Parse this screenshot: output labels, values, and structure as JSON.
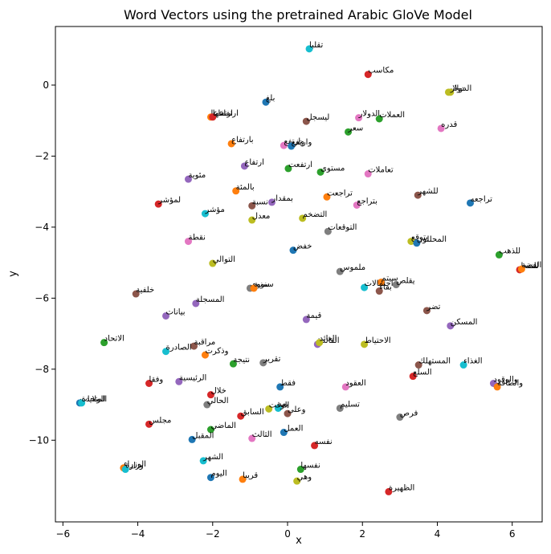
{
  "chart_data": {
    "type": "scatter",
    "title": "Word Vectors using the pretrained Arabic GloVe Model",
    "xlabel": "x",
    "ylabel": "y",
    "xlim": [
      -6.2,
      6.8
    ],
    "ylim": [
      -12.3,
      1.65
    ],
    "xticks": [
      -6,
      -4,
      -2,
      0,
      2,
      4,
      6
    ],
    "yticks": [
      0,
      -2,
      -4,
      -6,
      -8,
      -10
    ],
    "grid": false,
    "points": [
      {
        "x": 0.58,
        "y": 1.02,
        "label": "تقلبا",
        "color": "#17becf"
      },
      {
        "x": 2.15,
        "y": 0.3,
        "label": "مكاسب",
        "color": "#d62728"
      },
      {
        "x": 4.3,
        "y": -0.2,
        "label": "دولار",
        "color": "#bcbd22"
      },
      {
        "x": 4.35,
        "y": -0.2,
        "label": "الدولار",
        "color": "#bcbd22"
      },
      {
        "x": -0.58,
        "y": -0.48,
        "label": "بلغ",
        "color": "#1f77b4"
      },
      {
        "x": -2.05,
        "y": -0.9,
        "label": "ارتفاعا",
        "color": "#ff7f0e"
      },
      {
        "x": -2.0,
        "y": -0.9,
        "label": "ارتفاعها",
        "color": "#d62728"
      },
      {
        "x": 0.5,
        "y": -1.02,
        "label": "ليسجل",
        "color": "#8c564b"
      },
      {
        "x": 1.9,
        "y": -0.92,
        "label": "الدولار",
        "color": "#e377c2"
      },
      {
        "x": 2.45,
        "y": -0.95,
        "label": "العملات",
        "color": "#2ca02c"
      },
      {
        "x": 1.62,
        "y": -1.32,
        "label": "سعر",
        "color": "#2ca02c"
      },
      {
        "x": 4.1,
        "y": -1.22,
        "label": "قدره",
        "color": "#e377c2"
      },
      {
        "x": -1.5,
        "y": -1.65,
        "label": "بارتفاع",
        "color": "#ff7f0e"
      },
      {
        "x": -0.1,
        "y": -1.7,
        "label": "وارتفع",
        "color": "#e377c2"
      },
      {
        "x": 0.1,
        "y": -1.72,
        "label": "وارتفع",
        "color": "#1f77b4"
      },
      {
        "x": -1.15,
        "y": -2.28,
        "label": "ارتفاع",
        "color": "#9467bd"
      },
      {
        "x": 0.02,
        "y": -2.35,
        "label": "ارتفعت",
        "color": "#2ca02c"
      },
      {
        "x": 0.88,
        "y": -2.45,
        "label": "مستوى",
        "color": "#2ca02c"
      },
      {
        "x": 2.15,
        "y": -2.5,
        "label": "تعاملات",
        "color": "#e377c2"
      },
      {
        "x": -2.65,
        "y": -2.65,
        "label": "مئوية",
        "color": "#9467bd"
      },
      {
        "x": -1.38,
        "y": -2.98,
        "label": "بالمئة",
        "color": "#ff7f0e"
      },
      {
        "x": 3.48,
        "y": -3.1,
        "label": "للشهر",
        "color": "#8c564b"
      },
      {
        "x": 1.05,
        "y": -3.15,
        "label": "تراجعت",
        "color": "#ff7f0e"
      },
      {
        "x": -0.42,
        "y": -3.3,
        "label": "بمقدار",
        "color": "#9467bd"
      },
      {
        "x": 4.88,
        "y": -3.32,
        "label": "تراجعه",
        "color": "#1f77b4"
      },
      {
        "x": -3.45,
        "y": -3.35,
        "label": "لمؤشر",
        "color": "#d62728"
      },
      {
        "x": -0.95,
        "y": -3.4,
        "label": "نسبة",
        "color": "#8c564b"
      },
      {
        "x": 1.85,
        "y": -3.38,
        "label": "بتراجع",
        "color": "#e377c2"
      },
      {
        "x": -2.2,
        "y": -3.62,
        "label": "مؤشر",
        "color": "#17becf"
      },
      {
        "x": -0.95,
        "y": -3.8,
        "label": "معدل",
        "color": "#bcbd22"
      },
      {
        "x": 0.4,
        "y": -3.75,
        "label": "التضخم",
        "color": "#bcbd22"
      },
      {
        "x": 1.08,
        "y": -4.12,
        "label": "التوقعات",
        "color": "#7f7f7f"
      },
      {
        "x": 3.3,
        "y": -4.4,
        "label": "يتوقع",
        "color": "#bcbd22"
      },
      {
        "x": 3.45,
        "y": -4.45,
        "label": "المحللون",
        "color": "#1f77b4"
      },
      {
        "x": -2.65,
        "y": -4.4,
        "label": "نقطة",
        "color": "#e377c2"
      },
      {
        "x": 0.15,
        "y": -4.65,
        "label": "خفض",
        "color": "#1f77b4"
      },
      {
        "x": 5.65,
        "y": -4.78,
        "label": "للذهب",
        "color": "#2ca02c"
      },
      {
        "x": -2.0,
        "y": -5.02,
        "label": "التوالي",
        "color": "#bcbd22"
      },
      {
        "x": 6.2,
        "y": -5.2,
        "label": "للنفط",
        "color": "#d62728"
      },
      {
        "x": 6.25,
        "y": -5.18,
        "label": "الفضة",
        "color": "#ff7f0e"
      },
      {
        "x": 1.4,
        "y": -5.25,
        "label": "ملموس",
        "color": "#7f7f7f"
      },
      {
        "x": 2.5,
        "y": -5.55,
        "label": "سيتم",
        "color": "#ff7f0e"
      },
      {
        "x": 2.05,
        "y": -5.7,
        "label": "احتمالات",
        "color": "#17becf"
      },
      {
        "x": 2.9,
        "y": -5.62,
        "label": "يقلص",
        "color": "#7f7f7f"
      },
      {
        "x": 2.45,
        "y": -5.8,
        "label": "بقاء",
        "color": "#8c564b"
      },
      {
        "x": -1.0,
        "y": -5.72,
        "label": "سنوي",
        "color": "#7f7f7f"
      },
      {
        "x": -0.9,
        "y": -5.72,
        "label": "سنوية",
        "color": "#ff7f0e"
      },
      {
        "x": -4.05,
        "y": -5.88,
        "label": "خلفية",
        "color": "#8c564b"
      },
      {
        "x": 3.72,
        "y": -6.35,
        "label": "تضر",
        "color": "#8c564b"
      },
      {
        "x": -2.45,
        "y": -6.15,
        "label": "المسجلة",
        "color": "#9467bd"
      },
      {
        "x": -3.25,
        "y": -6.5,
        "label": "بيانات",
        "color": "#9467bd"
      },
      {
        "x": 0.5,
        "y": -6.6,
        "label": "قيمة",
        "color": "#9467bd"
      },
      {
        "x": 4.35,
        "y": -6.78,
        "label": "المسكن",
        "color": "#9467bd"
      },
      {
        "x": -4.9,
        "y": -7.25,
        "label": "الاتحاد",
        "color": "#2ca02c"
      },
      {
        "x": -2.5,
        "y": -7.35,
        "label": "مراقبة",
        "color": "#8c564b"
      },
      {
        "x": 0.8,
        "y": -7.3,
        "label": "الفائدة",
        "color": "#9467bd"
      },
      {
        "x": 0.85,
        "y": -7.25,
        "label": "العائد",
        "color": "#bcbd22"
      },
      {
        "x": 2.05,
        "y": -7.3,
        "label": "الاحتياط",
        "color": "#bcbd22"
      },
      {
        "x": -3.25,
        "y": -7.5,
        "label": "الصادرة",
        "color": "#17becf"
      },
      {
        "x": -2.2,
        "y": -7.6,
        "label": "وذكرت",
        "color": "#ff7f0e"
      },
      {
        "x": -1.45,
        "y": -7.85,
        "label": "نتيجة",
        "color": "#2ca02c"
      },
      {
        "x": -0.65,
        "y": -7.82,
        "label": "تقرير",
        "color": "#7f7f7f"
      },
      {
        "x": 3.5,
        "y": -7.88,
        "label": "المستهلك",
        "color": "#8c564b"
      },
      {
        "x": 4.7,
        "y": -7.88,
        "label": "الغذاء",
        "color": "#17becf"
      },
      {
        "x": 3.35,
        "y": -8.2,
        "label": "السلع",
        "color": "#d62728"
      },
      {
        "x": -3.7,
        "y": -8.4,
        "label": "وفقا",
        "color": "#d62728"
      },
      {
        "x": -2.9,
        "y": -8.35,
        "label": "الرئيسية",
        "color": "#9467bd"
      },
      {
        "x": 5.5,
        "y": -8.4,
        "label": "والوقود",
        "color": "#9467bd"
      },
      {
        "x": 5.6,
        "y": -8.5,
        "label": "والطاقة",
        "color": "#ff7f0e"
      },
      {
        "x": -0.2,
        "y": -8.5,
        "label": "فقط",
        "color": "#1f77b4"
      },
      {
        "x": 1.55,
        "y": -8.5,
        "label": "العقود",
        "color": "#e377c2"
      },
      {
        "x": -2.05,
        "y": -8.72,
        "label": "خلال",
        "color": "#d62728"
      },
      {
        "x": -5.55,
        "y": -8.95,
        "label": "الولايات",
        "color": "#1f77b4"
      },
      {
        "x": -5.5,
        "y": -8.95,
        "label": "المتحدة",
        "color": "#17becf"
      },
      {
        "x": -2.15,
        "y": -9.0,
        "label": "الحالي",
        "color": "#7f7f7f"
      },
      {
        "x": -0.25,
        "y": -9.1,
        "label": "يعد",
        "color": "#17becf"
      },
      {
        "x": -0.5,
        "y": -9.12,
        "label": "الوقت",
        "color": "#bcbd22"
      },
      {
        "x": 1.4,
        "y": -9.1,
        "label": "تسليم",
        "color": "#7f7f7f"
      },
      {
        "x": 0.0,
        "y": -9.25,
        "label": "وعلى",
        "color": "#8c564b"
      },
      {
        "x": -1.25,
        "y": -9.32,
        "label": "السابق",
        "color": "#d62728"
      },
      {
        "x": 3.0,
        "y": -9.35,
        "label": "فرص",
        "color": "#7f7f7f"
      },
      {
        "x": -3.7,
        "y": -9.55,
        "label": "مجلس",
        "color": "#d62728"
      },
      {
        "x": -2.05,
        "y": -9.7,
        "label": "الماضي",
        "color": "#2ca02c"
      },
      {
        "x": -0.1,
        "y": -9.78,
        "label": "العمل",
        "color": "#1f77b4"
      },
      {
        "x": -2.55,
        "y": -9.98,
        "label": "المقبل",
        "color": "#1f77b4"
      },
      {
        "x": -0.95,
        "y": -9.95,
        "label": "الثالث",
        "color": "#e377c2"
      },
      {
        "x": 0.72,
        "y": -10.15,
        "label": "نفسه",
        "color": "#d62728"
      },
      {
        "x": -2.25,
        "y": -10.58,
        "label": "الشهر",
        "color": "#17becf"
      },
      {
        "x": -4.38,
        "y": -10.78,
        "label": "الوزراء",
        "color": "#ff7f0e"
      },
      {
        "x": -4.33,
        "y": -10.82,
        "label": "وزارة",
        "color": "#17becf"
      },
      {
        "x": 0.35,
        "y": -10.82,
        "label": "نفسها",
        "color": "#2ca02c"
      },
      {
        "x": -2.05,
        "y": -11.05,
        "label": "اليوم",
        "color": "#1f77b4"
      },
      {
        "x": -1.2,
        "y": -11.1,
        "label": "قريبا",
        "color": "#ff7f0e"
      },
      {
        "x": 0.25,
        "y": -11.15,
        "label": "وهي",
        "color": "#bcbd22"
      },
      {
        "x": 2.7,
        "y": -11.45,
        "label": "الظهيرة",
        "color": "#d62728"
      }
    ]
  }
}
